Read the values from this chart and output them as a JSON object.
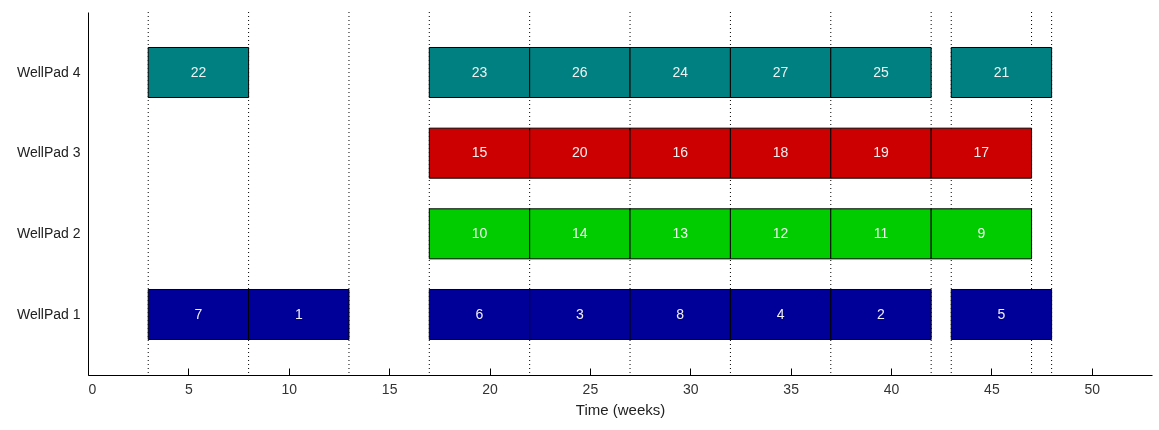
{
  "chart_data": {
    "type": "bar",
    "orientation": "horizontal",
    "xlabel": "Time (weeks)",
    "categories": [
      "WellPad 4",
      "WellPad 3",
      "WellPad 2",
      "WellPad 1"
    ],
    "series": [
      {
        "colors": [
          "#008080",
          "#cc0000",
          "#00cc00",
          "#000099"
        ],
        "base": [
          3,
          17,
          17,
          3
        ],
        "values": [
          5,
          5,
          5,
          5
        ]
      },
      {
        "colors": [
          "#008080",
          "#cc0000",
          "#00cc00",
          "#000099"
        ],
        "base": [
          17,
          22,
          22,
          8
        ],
        "values": [
          5,
          5,
          5,
          5
        ]
      },
      {
        "colors": [
          "#008080",
          "#cc0000",
          "#00cc00",
          "#000099"
        ],
        "base": [
          22,
          27,
          27,
          17
        ],
        "values": [
          5,
          5,
          5,
          5
        ]
      },
      {
        "colors": [
          "#008080",
          "#cc0000",
          "#00cc00",
          "#000099"
        ],
        "base": [
          27,
          32,
          32,
          22
        ],
        "values": [
          5,
          5,
          5,
          5
        ]
      },
      {
        "colors": [
          "#008080",
          "#cc0000",
          "#00cc00",
          "#000099"
        ],
        "base": [
          32,
          37,
          37,
          27
        ],
        "values": [
          5,
          5,
          5,
          5
        ]
      },
      {
        "colors": [
          "#008080",
          "#cc0000",
          "#00cc00",
          "#000099"
        ],
        "base": [
          37,
          42,
          42,
          32
        ],
        "values": [
          5,
          5,
          5,
          5
        ]
      },
      {
        "colors": [
          "#008080",
          null,
          null,
          "#000099"
        ],
        "base": [
          43,
          null,
          null,
          37
        ],
        "values": [
          5,
          null,
          null,
          5
        ]
      },
      {
        "colors": [
          null,
          null,
          null,
          "#000099"
        ],
        "base": [
          null,
          null,
          null,
          43
        ],
        "values": [
          null,
          null,
          null,
          5
        ]
      }
    ],
    "annotations": [
      "22",
      "23",
      "26",
      "24",
      "27",
      "25",
      "21",
      "15",
      "20",
      "16",
      "18",
      "19",
      "17",
      "10",
      "14",
      "13",
      "12",
      "11",
      "9",
      "7",
      "1",
      "6",
      "3",
      "8",
      "4",
      "2",
      "5"
    ],
    "xlim": [
      0,
      53
    ],
    "xticks": [
      0,
      5,
      10,
      15,
      20,
      25,
      30,
      35,
      40,
      45,
      50
    ],
    "grid": false,
    "ref_lines": [
      {
        "axis": "x",
        "value": 3,
        "color": "#000000",
        "line_style": "dotted"
      },
      {
        "axis": "x",
        "value": 8,
        "color": "#000000",
        "line_style": "dotted"
      },
      {
        "axis": "x",
        "value": 13,
        "color": "#000000",
        "line_style": "dotted"
      },
      {
        "axis": "x",
        "value": 17,
        "color": "#000000",
        "line_style": "dotted"
      },
      {
        "axis": "x",
        "value": 22,
        "color": "#000000",
        "line_style": "dotted"
      },
      {
        "axis": "x",
        "value": 27,
        "color": "#000000",
        "line_style": "dotted"
      },
      {
        "axis": "x",
        "value": 32,
        "color": "#000000",
        "line_style": "dotted"
      },
      {
        "axis": "x",
        "value": 37,
        "color": "#000000",
        "line_style": "dotted"
      },
      {
        "axis": "x",
        "value": 42,
        "color": "#000000",
        "line_style": "dotted"
      },
      {
        "axis": "x",
        "value": 43,
        "color": "#000000",
        "line_style": "dotted"
      },
      {
        "axis": "x",
        "value": 47,
        "color": "#000000",
        "line_style": "dotted"
      },
      {
        "axis": "x",
        "value": 48,
        "color": "#000000",
        "line_style": "dotted"
      }
    ]
  }
}
